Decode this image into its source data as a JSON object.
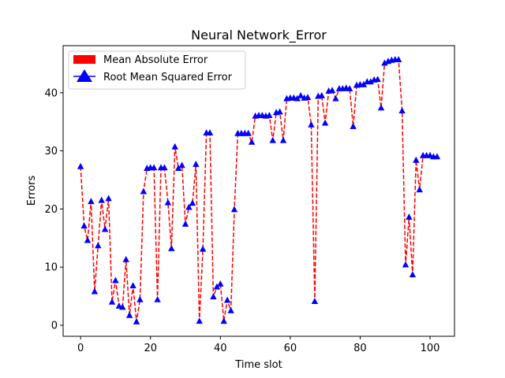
{
  "chart_data": {
    "type": "line",
    "title": "Neural Network_Error",
    "xlabel": "Time slot",
    "ylabel": "Errors",
    "xlim": [
      -5,
      107
    ],
    "ylim": [
      -1.9,
      48.1
    ],
    "xticks": [
      0,
      20,
      40,
      60,
      80,
      100
    ],
    "yticks": [
      0,
      10,
      20,
      30,
      40
    ],
    "grid": false,
    "legend_position": "top-left",
    "colors": {
      "line": "#ff0000",
      "marker": "#0000ff"
    },
    "series": [
      {
        "name": "Mean Absolute Error",
        "style": "dashed-line"
      },
      {
        "name": "Root Mean Squared Error",
        "style": "triangle-marker"
      }
    ],
    "x": [
      0,
      1,
      2,
      3,
      4,
      5,
      6,
      7,
      8,
      9,
      10,
      11,
      12,
      13,
      14,
      15,
      16,
      17,
      18,
      19,
      20,
      21,
      22,
      23,
      24,
      25,
      26,
      27,
      28,
      29,
      30,
      31,
      32,
      33,
      34,
      35,
      36,
      37,
      38,
      39,
      40,
      41,
      42,
      43,
      44,
      45,
      46,
      47,
      48,
      49,
      50,
      51,
      52,
      53,
      54,
      55,
      56,
      57,
      58,
      59,
      60,
      61,
      62,
      63,
      64,
      65,
      66,
      67,
      68,
      69,
      70,
      71,
      72,
      73,
      74,
      75,
      76,
      77,
      78,
      79,
      80,
      81,
      82,
      83,
      84,
      85,
      86,
      87,
      88,
      89,
      90,
      91,
      92,
      93,
      94,
      95,
      96,
      97,
      98,
      99,
      100,
      101,
      102
    ],
    "y": [
      27.3,
      17.1,
      14.6,
      21.3,
      5.8,
      13.7,
      21.5,
      16.5,
      21.8,
      4.0,
      7.7,
      3.3,
      3.1,
      11.3,
      1.7,
      6.8,
      0.6,
      4.4,
      23.0,
      27.0,
      27.1,
      27.1,
      4.4,
      27.1,
      27.1,
      21.1,
      13.2,
      30.7,
      27.0,
      27.5,
      17.4,
      20.3,
      21.0,
      27.7,
      0.7,
      13.1,
      33.1,
      33.1,
      4.9,
      6.6,
      7.1,
      0.7,
      4.3,
      2.5,
      19.9,
      33.0,
      33.0,
      33.0,
      33.0,
      31.5,
      36.0,
      36.1,
      36.1,
      36.0,
      36.1,
      31.8,
      36.6,
      36.7,
      31.8,
      39.0,
      39.1,
      39.1,
      39.0,
      39.5,
      39.1,
      39.2,
      34.5,
      4.1,
      39.4,
      39.5,
      34.8,
      40.3,
      40.4,
      39.0,
      40.7,
      40.7,
      40.8,
      40.7,
      34.2,
      41.3,
      41.4,
      41.4,
      41.9,
      41.9,
      42.2,
      42.3,
      37.4,
      45.1,
      45.4,
      45.6,
      45.7,
      45.7,
      36.9,
      10.4,
      18.6,
      8.7,
      28.4,
      23.3,
      29.2,
      29.2,
      29.2,
      29.0,
      29.0
    ]
  }
}
